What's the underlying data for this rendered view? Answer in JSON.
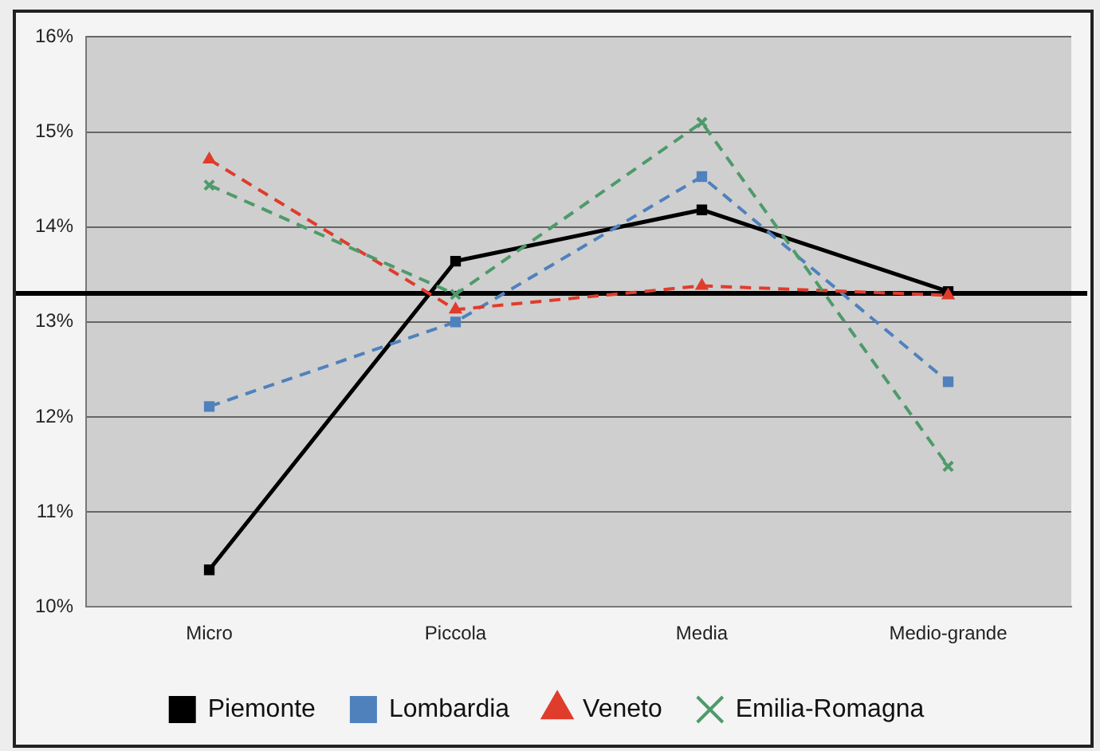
{
  "chart_data": {
    "type": "line",
    "categories": [
      "Micro",
      "Piccola",
      "Media",
      "Medio-grande"
    ],
    "series": [
      {
        "name": "Piemonte",
        "color": "#000000",
        "values": [
          10.39,
          13.64,
          14.18,
          13.32
        ],
        "marker": "square",
        "line_style": "solid"
      },
      {
        "name": "Lombardia",
        "color": "#4f81bd",
        "values": [
          12.11,
          13.0,
          14.53,
          12.37
        ],
        "marker": "square",
        "line_style": "dashed"
      },
      {
        "name": "Veneto",
        "color": "#e03c2c",
        "values": [
          14.71,
          13.13,
          13.38,
          13.28
        ],
        "marker": "triangle",
        "line_style": "dashed"
      },
      {
        "name": "Emilia-Romagna",
        "color": "#4e9a6a",
        "values": [
          14.44,
          13.29,
          15.1,
          11.48
        ],
        "marker": "cross",
        "line_style": "dashed"
      }
    ],
    "ylim": [
      10,
      16
    ],
    "yticks": [
      {
        "value": 10,
        "label": "10%"
      },
      {
        "value": 11,
        "label": "11%"
      },
      {
        "value": 12,
        "label": "12%"
      },
      {
        "value": 13,
        "label": "13%"
      },
      {
        "value": 14,
        "label": "14%"
      },
      {
        "value": 15,
        "label": "15%"
      },
      {
        "value": 16,
        "label": "16%"
      }
    ],
    "ref_lines": [
      {
        "axis": "y",
        "value": 13.3,
        "color": "#000000",
        "line_style": "solid"
      }
    ],
    "grid": "y",
    "legend": "bottom"
  }
}
